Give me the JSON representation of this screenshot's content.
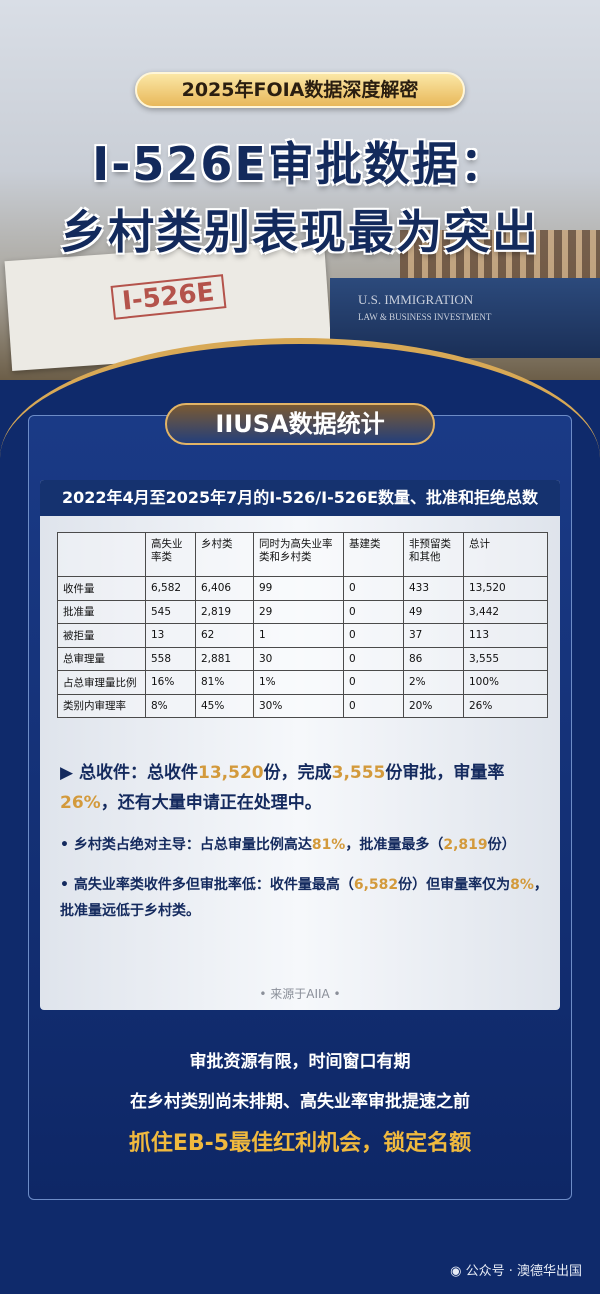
{
  "header": {
    "badge": "2025年FOIA数据深度解密",
    "title_line1": "I-526E审批数据：",
    "title_line2": "乡村类别表现最为突出",
    "photo_stamp": "I-526E",
    "photo_book_line1": "U.S. IMMIGRATION",
    "photo_book_line2": "LAW & BUSINESS INVESTMENT"
  },
  "section_tab": "IIUSA数据统计",
  "table": {
    "caption": "2022年4月至2025年7月的I-526/I-526E数量、批准和拒绝总数",
    "columns": [
      "",
      "高失业率类",
      "乡村类",
      "同时为高失业率类和乡村类",
      "基建类",
      "非预留类和其他",
      "总计"
    ],
    "rows": [
      [
        "收件量",
        "6,582",
        "6,406",
        "99",
        "0",
        "433",
        "13,520"
      ],
      [
        "批准量",
        "545",
        "2,819",
        "29",
        "0",
        "49",
        "3,442"
      ],
      [
        "被拒量",
        "13",
        "62",
        "1",
        "0",
        "37",
        "113"
      ],
      [
        "总审理量",
        "558",
        "2,881",
        "30",
        "0",
        "86",
        "3,555"
      ],
      [
        "占总审理量比例",
        "16%",
        "81%",
        "1%",
        "0",
        "2%",
        "100%"
      ],
      [
        "类别内审理率",
        "8%",
        "45%",
        "30%",
        "0",
        "20%",
        "26%"
      ]
    ]
  },
  "bullets": {
    "b1": {
      "marker": "▶",
      "p1": "总收件：总收件",
      "v1": "13,520",
      "p2": "份，完成",
      "v2": "3,555",
      "p3": "份审批，审量率",
      "v3": "26%",
      "p4": "，还有大量申请正在处理中。"
    },
    "b2": {
      "marker": "•",
      "p1": "乡村类占绝对主导：占总审量比例高达",
      "v1": "81%",
      "p2": "，批准量最多（",
      "v2": "2,819",
      "p3": "份）"
    },
    "b3": {
      "marker": "•",
      "p1": "高失业率类收件多但审批率低：收件量最高（",
      "v1": "6,582",
      "p2": "份）但审量率仅为",
      "v2": "8%",
      "p3": "，批准量远低于乡村类。"
    }
  },
  "source": "• 来源于AIIA •",
  "cta": {
    "line1": "审批资源有限，时间窗口有期",
    "line2": "在乡村类别尚未排期、高失业率审批提速之前",
    "line3": "抓住EB-5最佳红利机会，锁定名额"
  },
  "footer": {
    "icon": "wechat-icon",
    "text": "公众号 · 澳德华出国"
  },
  "colors": {
    "navy": "#0f2a6b",
    "gold": "#d39a3c",
    "cta_gold": "#f0b93e"
  }
}
